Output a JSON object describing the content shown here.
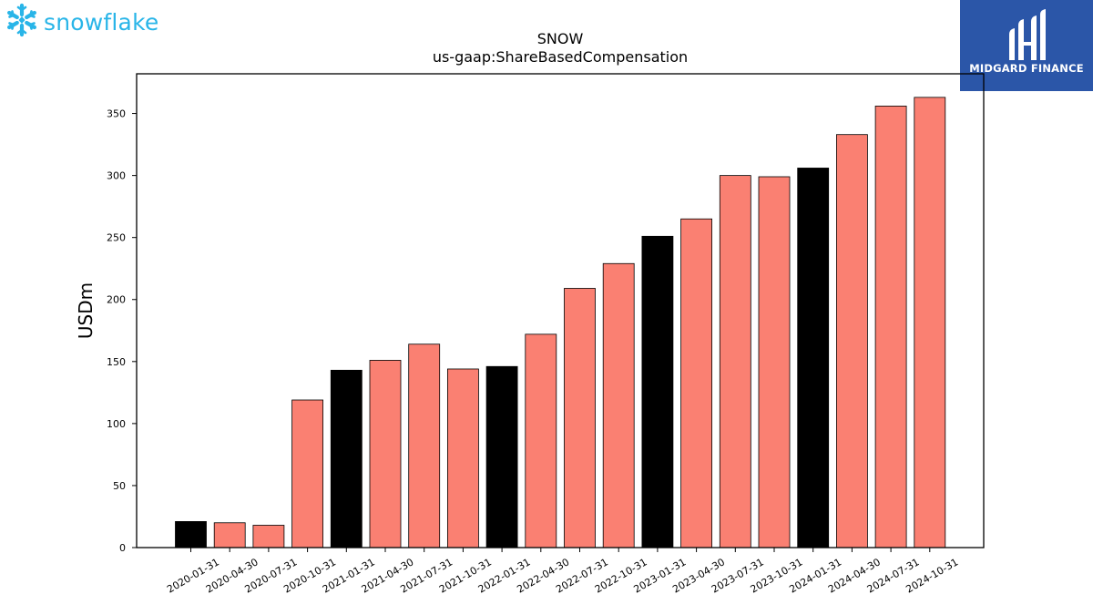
{
  "logos": {
    "left_text": "snowflake",
    "left_icon": "snowflake-icon",
    "left_color": "#29b5e8",
    "right_text": "MIDGARD FINANCE",
    "right_icon": "midgard-monogram-icon",
    "right_bg": "#2b56a8"
  },
  "chart_data": {
    "type": "bar",
    "title": "SNOW",
    "subtitle": "us-gaap:ShareBasedCompensation",
    "xlabel": "",
    "ylabel": "USDm",
    "ylim": [
      0,
      382
    ],
    "yticks": [
      0,
      50,
      100,
      150,
      200,
      250,
      300,
      350
    ],
    "grid": false,
    "categories": [
      "2020-01-31",
      "2020-04-30",
      "2020-07-31",
      "2020-10-31",
      "2021-01-31",
      "2021-04-30",
      "2021-07-31",
      "2021-10-31",
      "2022-01-31",
      "2022-04-30",
      "2022-07-31",
      "2022-10-31",
      "2023-01-31",
      "2023-04-30",
      "2023-07-31",
      "2023-10-31",
      "2024-01-31",
      "2024-04-30",
      "2024-07-31",
      "2024-10-31"
    ],
    "values": [
      21,
      20,
      18,
      119,
      143,
      151,
      164,
      144,
      146,
      172,
      209,
      229,
      251,
      265,
      300,
      299,
      306,
      333,
      356,
      363
    ],
    "colors": {
      "fiscal_year_end": "#000000",
      "quarter": "#fa8072",
      "edge": "#000000"
    },
    "highlight": [
      true,
      false,
      false,
      false,
      true,
      false,
      false,
      false,
      true,
      false,
      false,
      false,
      true,
      false,
      false,
      false,
      true,
      false,
      false,
      false
    ]
  }
}
